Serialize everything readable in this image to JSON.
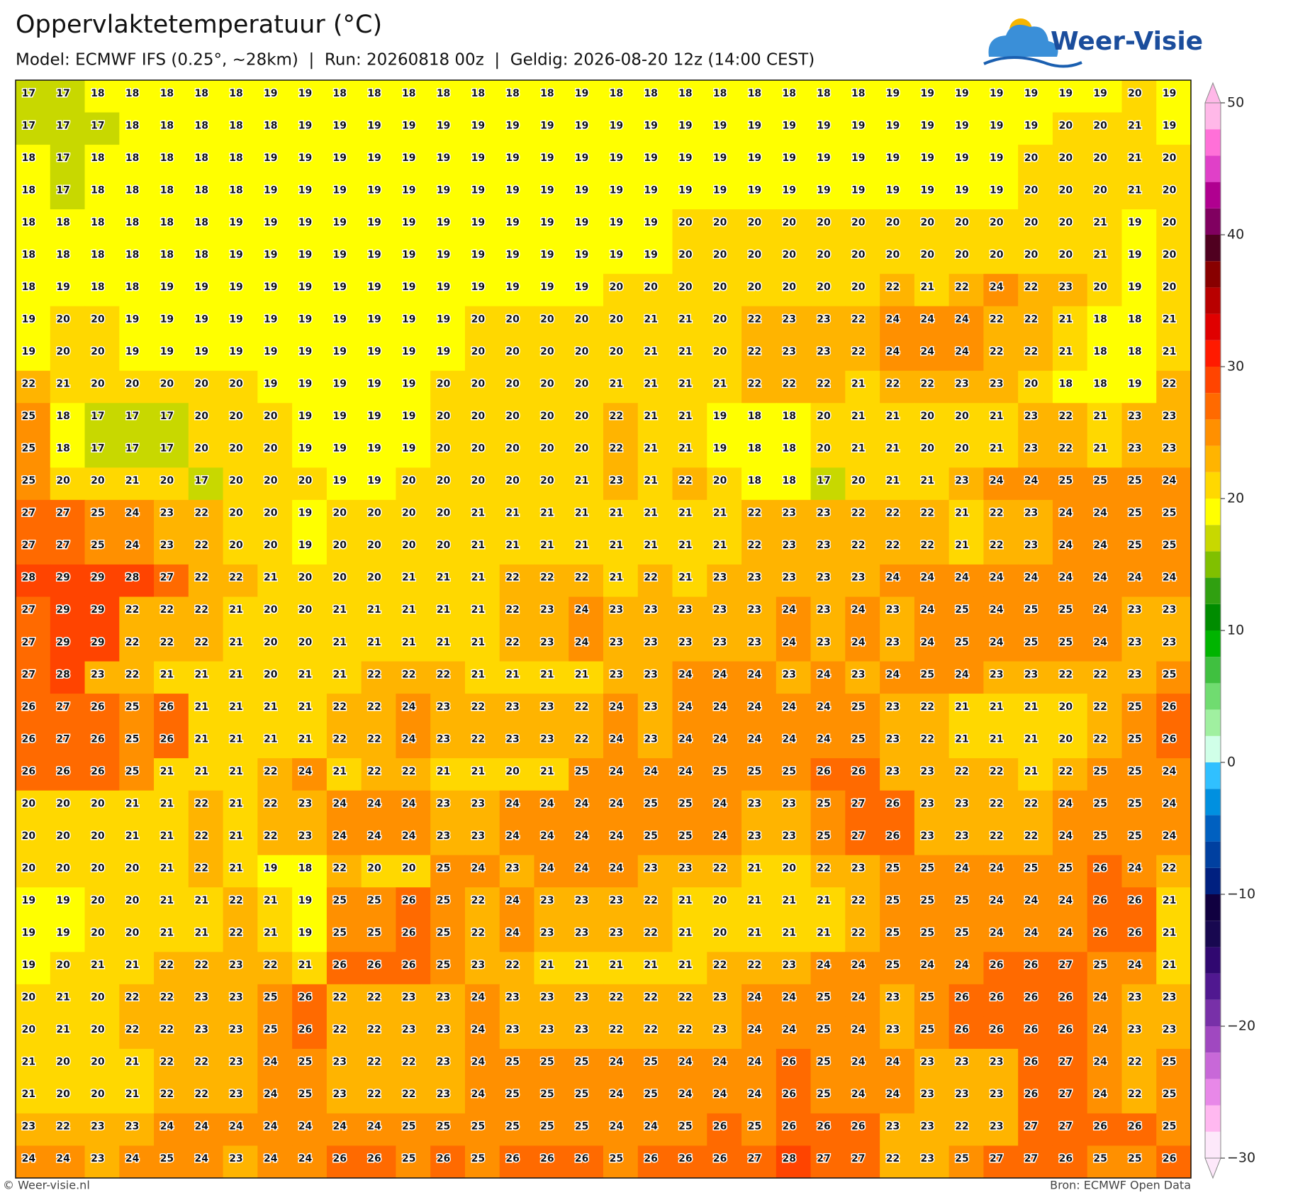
{
  "header": {
    "title": "Oppervlaktetemperatuur (°C)",
    "subtitle": "Model: ECMWF IFS (0.25°, ~28km)  |  Run: 20260818 00z  |  Geldig: 2026-08-20 12z (14:00 CEST)",
    "logo": "Weer-Visie"
  },
  "map": {
    "grid": {
      "rows": [
        [
          17,
          17,
          18,
          18,
          18,
          18,
          18,
          19,
          19,
          18,
          18,
          18,
          18,
          18,
          18,
          18,
          19,
          18,
          18,
          18,
          18,
          18,
          18,
          18,
          18,
          19,
          19,
          19,
          19,
          19,
          19,
          19,
          20,
          19
        ],
        [
          17,
          17,
          17,
          18,
          18,
          18,
          18,
          18,
          19,
          19,
          19,
          19,
          19,
          19,
          19,
          19,
          19,
          19,
          19,
          19,
          19,
          19,
          19,
          19,
          19,
          19,
          19,
          19,
          19,
          19,
          20,
          20,
          21,
          19
        ],
        [
          18,
          17,
          18,
          18,
          18,
          18,
          18,
          19,
          19,
          19,
          19,
          19,
          19,
          19,
          19,
          19,
          19,
          19,
          19,
          19,
          19,
          19,
          19,
          19,
          19,
          19,
          19,
          19,
          19,
          20,
          20,
          20,
          21,
          20
        ],
        [
          18,
          17,
          18,
          18,
          18,
          18,
          18,
          19,
          19,
          19,
          19,
          19,
          19,
          19,
          19,
          19,
          19,
          19,
          19,
          19,
          19,
          19,
          19,
          19,
          19,
          19,
          19,
          19,
          19,
          20,
          20,
          20,
          21,
          20
        ],
        [
          18,
          18,
          18,
          18,
          18,
          18,
          19,
          19,
          19,
          19,
          19,
          19,
          19,
          19,
          19,
          19,
          19,
          19,
          19,
          20,
          20,
          20,
          20,
          20,
          20,
          20,
          20,
          20,
          20,
          20,
          20,
          21,
          19,
          20
        ],
        [
          18,
          18,
          18,
          18,
          18,
          18,
          19,
          19,
          19,
          19,
          19,
          19,
          19,
          19,
          19,
          19,
          19,
          19,
          19,
          20,
          20,
          20,
          20,
          20,
          20,
          20,
          20,
          20,
          20,
          20,
          20,
          21,
          19,
          20
        ],
        [
          18,
          19,
          18,
          18,
          19,
          19,
          19,
          19,
          19,
          19,
          19,
          19,
          19,
          19,
          19,
          19,
          19,
          20,
          20,
          20,
          20,
          20,
          20,
          20,
          20,
          22,
          21,
          22,
          24,
          22,
          23,
          20,
          19,
          20
        ],
        [
          19,
          20,
          20,
          19,
          19,
          19,
          19,
          19,
          19,
          19,
          19,
          19,
          19,
          20,
          20,
          20,
          20,
          20,
          21,
          21,
          20,
          22,
          23,
          23,
          22,
          24,
          24,
          24,
          22,
          22,
          21,
          18,
          18,
          21
        ],
        [
          19,
          20,
          20,
          19,
          19,
          19,
          19,
          19,
          19,
          19,
          19,
          19,
          19,
          20,
          20,
          20,
          20,
          20,
          21,
          21,
          20,
          22,
          23,
          23,
          22,
          24,
          24,
          24,
          22,
          22,
          21,
          18,
          18,
          21
        ],
        [
          22,
          21,
          20,
          20,
          20,
          20,
          20,
          19,
          19,
          19,
          19,
          19,
          20,
          20,
          20,
          20,
          20,
          21,
          21,
          21,
          21,
          22,
          22,
          22,
          21,
          22,
          22,
          23,
          23,
          20,
          18,
          18,
          19,
          22
        ],
        [
          25,
          18,
          17,
          17,
          17,
          20,
          20,
          20,
          19,
          19,
          19,
          19,
          20,
          20,
          20,
          20,
          20,
          22,
          21,
          21,
          19,
          18,
          18,
          20,
          21,
          21,
          20,
          20,
          21,
          23,
          22,
          21,
          23,
          23
        ],
        [
          25,
          18,
          17,
          17,
          17,
          20,
          20,
          20,
          19,
          19,
          19,
          19,
          20,
          20,
          20,
          20,
          20,
          22,
          21,
          21,
          19,
          18,
          18,
          20,
          21,
          21,
          20,
          20,
          21,
          23,
          22,
          21,
          23,
          23
        ],
        [
          25,
          20,
          20,
          21,
          20,
          17,
          20,
          20,
          20,
          19,
          19,
          20,
          20,
          20,
          20,
          20,
          21,
          23,
          21,
          22,
          20,
          18,
          18,
          17,
          20,
          21,
          21,
          23,
          24,
          24,
          25,
          25,
          25,
          24
        ],
        [
          27,
          27,
          25,
          24,
          23,
          22,
          20,
          20,
          19,
          20,
          20,
          20,
          20,
          21,
          21,
          21,
          21,
          21,
          21,
          21,
          21,
          22,
          23,
          23,
          22,
          22,
          22,
          21,
          22,
          23,
          24,
          24,
          25,
          25
        ],
        [
          27,
          27,
          25,
          24,
          23,
          22,
          20,
          20,
          19,
          20,
          20,
          20,
          20,
          21,
          21,
          21,
          21,
          21,
          21,
          21,
          21,
          22,
          23,
          23,
          22,
          22,
          22,
          21,
          22,
          23,
          24,
          24,
          25,
          25
        ],
        [
          28,
          29,
          29,
          28,
          27,
          22,
          22,
          21,
          20,
          20,
          20,
          21,
          21,
          21,
          22,
          22,
          22,
          21,
          22,
          21,
          23,
          23,
          23,
          23,
          23,
          24,
          24,
          24,
          24,
          24,
          24,
          24,
          24,
          24
        ],
        [
          27,
          29,
          29,
          22,
          22,
          22,
          21,
          20,
          20,
          21,
          21,
          21,
          21,
          21,
          22,
          23,
          24,
          23,
          23,
          23,
          23,
          23,
          24,
          23,
          24,
          23,
          24,
          25,
          24,
          25,
          25,
          24,
          23,
          23
        ],
        [
          27,
          29,
          29,
          22,
          22,
          22,
          21,
          20,
          20,
          21,
          21,
          21,
          21,
          21,
          22,
          23,
          24,
          23,
          23,
          23,
          23,
          23,
          24,
          23,
          24,
          23,
          24,
          25,
          24,
          25,
          25,
          24,
          23,
          23
        ],
        [
          27,
          28,
          23,
          22,
          21,
          21,
          21,
          20,
          21,
          21,
          22,
          22,
          22,
          21,
          21,
          21,
          21,
          23,
          23,
          24,
          24,
          24,
          23,
          24,
          23,
          24,
          25,
          24,
          23,
          23,
          22,
          22,
          23,
          25
        ],
        [
          26,
          27,
          26,
          25,
          26,
          21,
          21,
          21,
          21,
          22,
          22,
          24,
          23,
          22,
          23,
          23,
          22,
          24,
          23,
          24,
          24,
          24,
          24,
          24,
          25,
          23,
          22,
          21,
          21,
          21,
          20,
          22,
          25,
          26
        ],
        [
          26,
          27,
          26,
          25,
          26,
          21,
          21,
          21,
          21,
          22,
          22,
          24,
          23,
          22,
          23,
          23,
          22,
          24,
          23,
          24,
          24,
          24,
          24,
          24,
          25,
          23,
          22,
          21,
          21,
          21,
          20,
          22,
          25,
          26
        ],
        [
          26,
          26,
          26,
          25,
          21,
          21,
          21,
          22,
          24,
          21,
          22,
          22,
          21,
          21,
          20,
          21,
          25,
          24,
          24,
          24,
          25,
          25,
          25,
          26,
          26,
          23,
          23,
          22,
          22,
          21,
          22,
          25,
          25,
          24
        ],
        [
          20,
          20,
          20,
          21,
          21,
          22,
          21,
          22,
          23,
          24,
          24,
          24,
          23,
          23,
          24,
          24,
          24,
          24,
          25,
          25,
          24,
          23,
          23,
          25,
          27,
          26,
          23,
          23,
          22,
          22,
          24,
          25,
          25,
          24
        ],
        [
          20,
          20,
          20,
          21,
          21,
          22,
          21,
          22,
          23,
          24,
          24,
          24,
          23,
          23,
          24,
          24,
          24,
          24,
          25,
          25,
          24,
          23,
          23,
          25,
          27,
          26,
          23,
          23,
          22,
          22,
          24,
          25,
          25,
          24
        ],
        [
          20,
          20,
          20,
          20,
          21,
          22,
          21,
          19,
          18,
          22,
          20,
          20,
          25,
          24,
          23,
          24,
          24,
          24,
          23,
          23,
          22,
          21,
          20,
          22,
          23,
          25,
          25,
          24,
          24,
          25,
          25,
          26,
          24,
          22
        ],
        [
          19,
          19,
          20,
          20,
          21,
          21,
          22,
          21,
          19,
          25,
          25,
          26,
          25,
          22,
          24,
          23,
          23,
          23,
          22,
          21,
          20,
          21,
          21,
          21,
          22,
          25,
          25,
          25,
          24,
          24,
          24,
          26,
          26,
          21
        ],
        [
          19,
          19,
          20,
          20,
          21,
          21,
          22,
          21,
          19,
          25,
          25,
          26,
          25,
          22,
          24,
          23,
          23,
          23,
          22,
          21,
          20,
          21,
          21,
          21,
          22,
          25,
          25,
          25,
          24,
          24,
          24,
          26,
          26,
          21
        ],
        [
          19,
          20,
          21,
          21,
          22,
          22,
          23,
          22,
          21,
          26,
          26,
          26,
          25,
          23,
          22,
          21,
          21,
          21,
          21,
          21,
          22,
          22,
          23,
          24,
          24,
          25,
          24,
          24,
          26,
          26,
          27,
          25,
          24,
          21
        ],
        [
          20,
          21,
          20,
          22,
          22,
          23,
          23,
          25,
          26,
          22,
          22,
          23,
          23,
          24,
          23,
          23,
          23,
          22,
          22,
          22,
          23,
          24,
          24,
          25,
          24,
          23,
          25,
          26,
          26,
          26,
          26,
          24,
          23,
          23
        ],
        [
          20,
          21,
          20,
          22,
          22,
          23,
          23,
          25,
          26,
          22,
          22,
          23,
          23,
          24,
          23,
          23,
          23,
          22,
          22,
          22,
          23,
          24,
          24,
          25,
          24,
          23,
          25,
          26,
          26,
          26,
          26,
          24,
          23,
          23
        ],
        [
          21,
          20,
          20,
          21,
          22,
          22,
          23,
          24,
          25,
          23,
          22,
          22,
          23,
          24,
          25,
          25,
          25,
          24,
          25,
          24,
          24,
          24,
          26,
          25,
          24,
          24,
          23,
          23,
          23,
          26,
          27,
          24,
          22,
          25
        ],
        [
          21,
          20,
          20,
          21,
          22,
          22,
          23,
          24,
          25,
          23,
          22,
          22,
          23,
          24,
          25,
          25,
          25,
          24,
          25,
          24,
          24,
          24,
          26,
          25,
          24,
          24,
          23,
          23,
          23,
          26,
          27,
          24,
          22,
          25
        ],
        [
          23,
          22,
          23,
          23,
          24,
          24,
          24,
          24,
          24,
          24,
          24,
          25,
          25,
          25,
          25,
          25,
          25,
          24,
          24,
          25,
          26,
          25,
          26,
          26,
          26,
          23,
          23,
          22,
          23,
          27,
          27,
          26,
          26,
          25
        ],
        [
          24,
          24,
          23,
          24,
          25,
          24,
          23,
          24,
          24,
          26,
          26,
          25,
          26,
          25,
          26,
          26,
          26,
          25,
          26,
          26,
          26,
          27,
          28,
          27,
          27,
          22,
          23,
          25,
          27,
          27,
          26,
          25,
          25,
          26
        ]
      ]
    }
  },
  "colorbar": {
    "range": [
      -30,
      50
    ],
    "colors": [
      "#fde8fa",
      "#ffb8f0",
      "#e888e8",
      "#c868d8",
      "#a048c0",
      "#7830a8",
      "#501890",
      "#300870",
      "#180850",
      "#100040",
      "#002080",
      "#0040a0",
      "#0060c0",
      "#0090e0",
      "#30c0ff",
      "#d0ffe8",
      "#a0f0a0",
      "#70dc70",
      "#40c040",
      "#00b400",
      "#008c00",
      "#30a010",
      "#80c000",
      "#c8d800",
      "#ffff00",
      "#ffd800",
      "#ffb400",
      "#ff9000",
      "#ff6a00",
      "#ff4400",
      "#ff1a00",
      "#e00000",
      "#b80000",
      "#880000",
      "#500020",
      "#800060",
      "#b00090",
      "#e040c8",
      "#ff70d8",
      "#ffb8e8"
    ],
    "ticks": [
      {
        "value": -30,
        "label": "−30"
      },
      {
        "value": -20,
        "label": "−20"
      },
      {
        "value": -10,
        "label": "−10"
      },
      0,
      10,
      20,
      30,
      40,
      50
    ]
  },
  "footer": {
    "left": "© Weer-visie.nl",
    "right": "Bron: ECMWF Open Data"
  }
}
